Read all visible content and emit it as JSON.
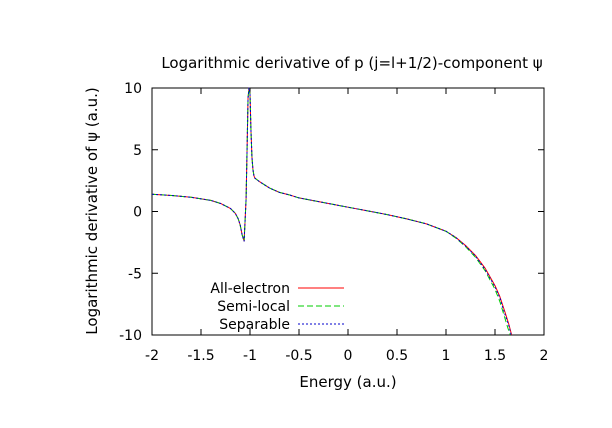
{
  "chart_data": {
    "type": "line",
    "title": "Logarithmic derivative of p (j=l+1/2)-component ψ",
    "xlabel": "Energy (a.u.)",
    "ylabel": "Logarithmic derivative of ψ (a.u.)",
    "xlim": [
      -2,
      2
    ],
    "ylim": [
      -10,
      10
    ],
    "xticks": [
      -2,
      -1.5,
      -1,
      -0.5,
      0,
      0.5,
      1,
      1.5,
      2
    ],
    "xtick_labels": [
      "-2",
      "-1.5",
      "-1",
      "-0.5",
      "0",
      "0.5",
      "1",
      "1.5",
      "2"
    ],
    "yticks": [
      -10,
      -5,
      0,
      5,
      10
    ],
    "ytick_labels": [
      "-10",
      "-5",
      "0",
      "5",
      "10"
    ],
    "grid": false,
    "legend_position": "bottom-left",
    "series": [
      {
        "name": "All-electron",
        "color": "#ff0000",
        "dash": "solid",
        "x": [
          -2.0,
          -1.8,
          -1.6,
          -1.4,
          -1.3,
          -1.2,
          -1.15,
          -1.12,
          -1.1,
          -1.08,
          -1.06,
          -1.04,
          -1.03,
          -1.02,
          -1.01,
          -1.0,
          -0.99,
          -0.98,
          -0.97,
          -0.96,
          -0.95,
          -0.9,
          -0.8,
          -0.7,
          -0.6,
          -0.5,
          -0.4,
          -0.2,
          0.0,
          0.2,
          0.4,
          0.6,
          0.8,
          1.0,
          1.1,
          1.2,
          1.3,
          1.4,
          1.5,
          1.55,
          1.6,
          1.64,
          1.67
        ],
        "y": [
          1.4,
          1.3,
          1.15,
          0.9,
          0.65,
          0.25,
          -0.15,
          -0.6,
          -1.1,
          -1.9,
          -2.4,
          1.0,
          5.0,
          9.2,
          10.0,
          9.5,
          6.5,
          4.4,
          3.4,
          2.9,
          2.7,
          2.4,
          1.9,
          1.55,
          1.35,
          1.1,
          0.95,
          0.65,
          0.35,
          0.05,
          -0.25,
          -0.6,
          -1.0,
          -1.6,
          -2.1,
          -2.75,
          -3.55,
          -4.6,
          -6.0,
          -6.9,
          -8.1,
          -9.1,
          -10.0
        ]
      },
      {
        "name": "Semi-local",
        "color": "#00cc00",
        "dash": "6 3",
        "x": [
          -2.0,
          -1.8,
          -1.6,
          -1.4,
          -1.3,
          -1.2,
          -1.15,
          -1.12,
          -1.1,
          -1.08,
          -1.06,
          -1.04,
          -1.03,
          -1.02,
          -1.01,
          -1.0,
          -0.99,
          -0.98,
          -0.97,
          -0.96,
          -0.95,
          -0.9,
          -0.8,
          -0.7,
          -0.6,
          -0.5,
          -0.4,
          -0.2,
          0.0,
          0.2,
          0.4,
          0.6,
          0.8,
          1.0,
          1.1,
          1.2,
          1.3,
          1.4,
          1.5,
          1.55,
          1.6,
          1.63,
          1.655
        ],
        "y": [
          1.4,
          1.3,
          1.15,
          0.9,
          0.65,
          0.25,
          -0.15,
          -0.6,
          -1.1,
          -1.9,
          -2.4,
          1.0,
          5.0,
          9.2,
          10.0,
          9.5,
          6.5,
          4.4,
          3.4,
          2.9,
          2.7,
          2.4,
          1.9,
          1.55,
          1.35,
          1.1,
          0.95,
          0.65,
          0.35,
          0.05,
          -0.25,
          -0.6,
          -1.0,
          -1.6,
          -2.15,
          -2.85,
          -3.7,
          -4.8,
          -6.3,
          -7.3,
          -8.6,
          -9.4,
          -10.0
        ]
      },
      {
        "name": "Separable",
        "color": "#0000cc",
        "dash": "2 2",
        "x": [
          -2.0,
          -1.8,
          -1.6,
          -1.4,
          -1.3,
          -1.2,
          -1.15,
          -1.12,
          -1.1,
          -1.08,
          -1.06,
          -1.04,
          -1.03,
          -1.02,
          -1.01,
          -1.0,
          -0.99,
          -0.98,
          -0.97,
          -0.96,
          -0.95,
          -0.9,
          -0.8,
          -0.7,
          -0.6,
          -0.5,
          -0.4,
          -0.2,
          0.0,
          0.2,
          0.4,
          0.6,
          0.8,
          1.0,
          1.1,
          1.2,
          1.3,
          1.4,
          1.5,
          1.55,
          1.6,
          1.64,
          1.665
        ],
        "y": [
          1.4,
          1.3,
          1.15,
          0.9,
          0.65,
          0.25,
          -0.15,
          -0.6,
          -1.1,
          -1.9,
          -2.4,
          1.0,
          5.0,
          9.2,
          10.0,
          9.5,
          6.5,
          4.4,
          3.4,
          2.9,
          2.7,
          2.4,
          1.9,
          1.55,
          1.35,
          1.1,
          0.95,
          0.65,
          0.35,
          0.05,
          -0.25,
          -0.6,
          -1.0,
          -1.6,
          -2.1,
          -2.8,
          -3.6,
          -4.7,
          -6.1,
          -7.0,
          -8.3,
          -9.2,
          -10.0
        ]
      }
    ]
  }
}
